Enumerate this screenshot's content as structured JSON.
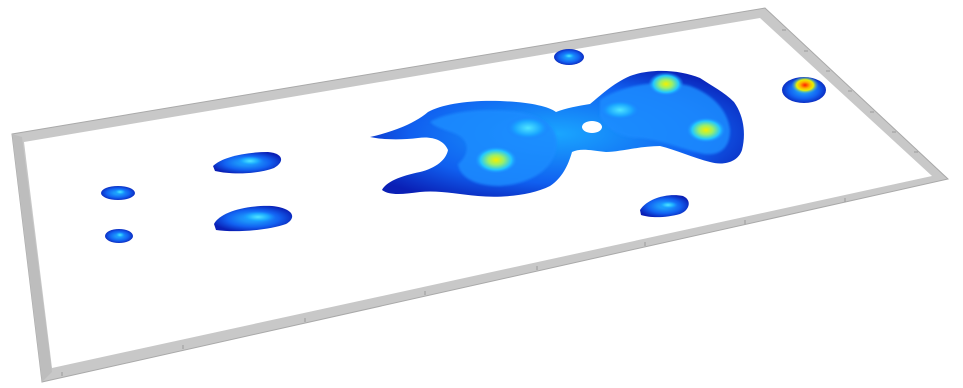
{
  "scene": {
    "description_type": "pressure-heatmap-3d-plate",
    "colors": {
      "background": "#ffffff",
      "plate_surface": "#ffffff",
      "plate_frame": "#c8c8c8",
      "plate_frame_edge": "#a9a9a9",
      "heat_low": "#0a1fb5",
      "heat_mid_low": "#1565ff",
      "heat_mid": "#18b4ff",
      "heat_mid_high": "#36e0c8",
      "heat_high": "#e8f000",
      "heat_peak": "#ff1e00"
    },
    "colormap": "jet"
  }
}
